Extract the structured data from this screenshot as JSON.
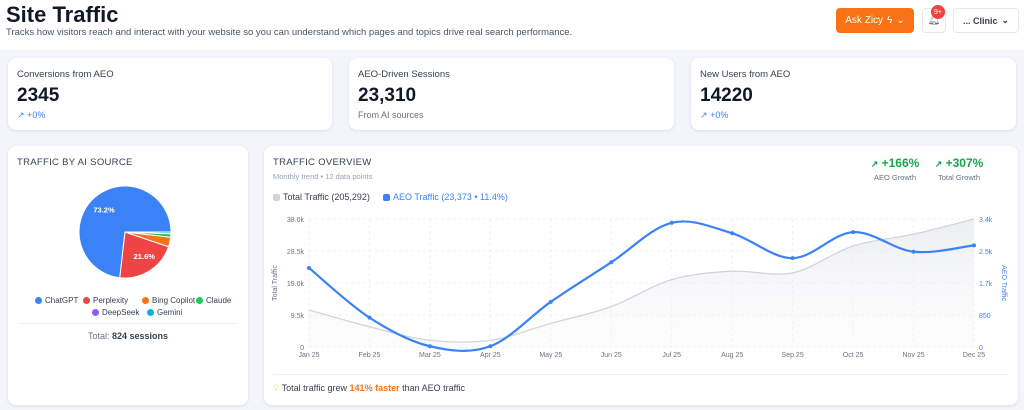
{
  "header": {
    "title": "Site Traffic",
    "subtitle": "Tracks how visitors reach and interact with your website so you can understand which pages and topics drive real search performance.",
    "ask_label": "Ask Zicy",
    "notif_badge": "9+",
    "account_label": "... Clinic"
  },
  "kpis": [
    {
      "label": "Conversions from AEO",
      "value": "2345",
      "trend": "+0%"
    },
    {
      "label": "AEO-Driven Sessions",
      "value": "23,310",
      "sub": "From AI sources"
    },
    {
      "label": "New Users from AEO",
      "value": "14220",
      "trend": "+0%"
    }
  ],
  "source": {
    "title": "TRAFFIC BY AI SOURCE",
    "total_label": "Total:",
    "total_value": "824 sessions"
  },
  "overview": {
    "title": "TRAFFIC OVERVIEW",
    "subtitle": "Monthly trend • 12 data points",
    "aeo_growth": "+166%",
    "aeo_growth_label": "AEO Growth",
    "total_growth": "+307%",
    "total_growth_label": "Total Growth",
    "insight_pre": "Total traffic grew",
    "insight_hl": "141% faster",
    "insight_post": "than AEO traffic"
  },
  "chart_data": [
    {
      "type": "pie",
      "slices": [
        {
          "name": "ChatGPT",
          "value": 73.2,
          "label": "73.2%",
          "color": "#3b82f6"
        },
        {
          "name": "Perplexity",
          "value": 21.6,
          "label": "21.6%",
          "color": "#ef4444"
        },
        {
          "name": "Bing Copilot",
          "value": 3.4,
          "color": "#f97316"
        },
        {
          "name": "Claude",
          "value": 1.2,
          "color": "#22c55e"
        },
        {
          "name": "DeepSeek",
          "value": 0,
          "color": "#8b5cf6"
        },
        {
          "name": "Gemini",
          "value": 0.6,
          "color": "#06b6d4"
        }
      ]
    },
    {
      "type": "line",
      "categories": [
        "Jan 25",
        "Feb 25",
        "Mar 25",
        "Apr 25",
        "May 25",
        "Jun 25",
        "Jul 25",
        "Aug 25",
        "Sep 25",
        "Oct 25",
        "Nov 25",
        "Dec 25"
      ],
      "ylabel": "Total Traffic",
      "y2label": "AEO Traffic",
      "yticks": [
        "0",
        "9.5k",
        "19.0k",
        "28.5k",
        "38.0k"
      ],
      "y2ticks": [
        "0",
        "850",
        "1.7k",
        "2.5k",
        "3.4k"
      ],
      "ylim": [
        0,
        38000
      ],
      "y2lim": [
        0,
        3400
      ],
      "series": [
        {
          "name": "Total Traffic (205,292)",
          "axis": "left",
          "color": "#d1d5db",
          "values": [
            11000,
            6000,
            2000,
            2000,
            7000,
            12000,
            20000,
            22500,
            22000,
            30000,
            33500,
            38000
          ]
        },
        {
          "name": "AEO Traffic (23,373 • 11.4%)",
          "axis": "right",
          "color": "#3b82f6",
          "values": [
            2100,
            780,
            20,
            20,
            1200,
            2250,
            3300,
            3020,
            2360,
            3050,
            2530,
            2700
          ]
        }
      ]
    }
  ]
}
